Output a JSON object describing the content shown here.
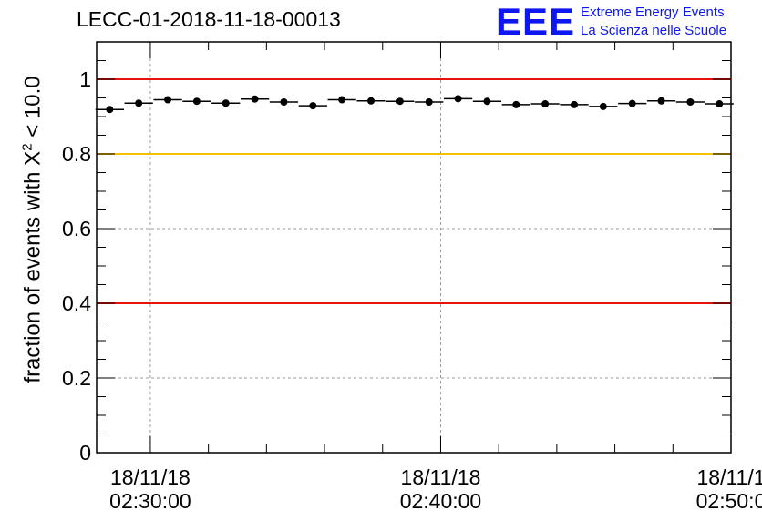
{
  "header": {
    "run_title": "LECC-01-2018-11-18-00013",
    "logo_mark": "EEE",
    "logo_line1": "Extreme Energy Events",
    "logo_line2": "La Scienza nelle Scuole"
  },
  "colors": {
    "upper_threshold": "#e8120c",
    "warning_threshold": "#f4c000",
    "lower_threshold": "#e8120c",
    "markers": "#000000",
    "logo": "#0d17f2"
  },
  "chart_data": {
    "type": "scatter",
    "ylabel_prefix": "fraction of events with X",
    "ylabel_power": "2",
    "ylabel_suffix": " < 10.0",
    "ylim": [
      0,
      1.1
    ],
    "xlim_minutes": [
      28.15,
      50.0
    ],
    "y_ticks": [
      "0",
      "0.2",
      "0.4",
      "0.6",
      "0.8",
      "1"
    ],
    "y_tick_values": [
      0,
      0.2,
      0.4,
      0.6,
      0.8,
      1.0
    ],
    "x_major_ticks": [
      {
        "minute": 30,
        "date": "18/11/18",
        "time": "02:30:00"
      },
      {
        "minute": 40,
        "date": "18/11/18",
        "time": "02:40:00"
      },
      {
        "minute": 50,
        "date": "18/11/1",
        "time": "02:50:0"
      }
    ],
    "grid": true,
    "thresholds": [
      {
        "value": 1.0,
        "color_key": "upper_threshold"
      },
      {
        "value": 0.8,
        "color_key": "warning_threshold"
      },
      {
        "value": 0.4,
        "color_key": "lower_threshold"
      }
    ],
    "bin_width_minutes": 0.98,
    "points": [
      {
        "x": 28.6,
        "y": 0.919
      },
      {
        "x": 29.6,
        "y": 0.936
      },
      {
        "x": 30.6,
        "y": 0.945
      },
      {
        "x": 31.6,
        "y": 0.941
      },
      {
        "x": 32.6,
        "y": 0.936
      },
      {
        "x": 33.6,
        "y": 0.947
      },
      {
        "x": 34.6,
        "y": 0.939
      },
      {
        "x": 35.6,
        "y": 0.929
      },
      {
        "x": 36.6,
        "y": 0.945
      },
      {
        "x": 37.6,
        "y": 0.942
      },
      {
        "x": 38.6,
        "y": 0.941
      },
      {
        "x": 39.6,
        "y": 0.939
      },
      {
        "x": 40.6,
        "y": 0.948
      },
      {
        "x": 41.6,
        "y": 0.941
      },
      {
        "x": 42.6,
        "y": 0.932
      },
      {
        "x": 43.6,
        "y": 0.934
      },
      {
        "x": 44.6,
        "y": 0.932
      },
      {
        "x": 45.6,
        "y": 0.927
      },
      {
        "x": 46.6,
        "y": 0.935
      },
      {
        "x": 47.6,
        "y": 0.942
      },
      {
        "x": 48.6,
        "y": 0.939
      },
      {
        "x": 49.6,
        "y": 0.934
      }
    ]
  }
}
